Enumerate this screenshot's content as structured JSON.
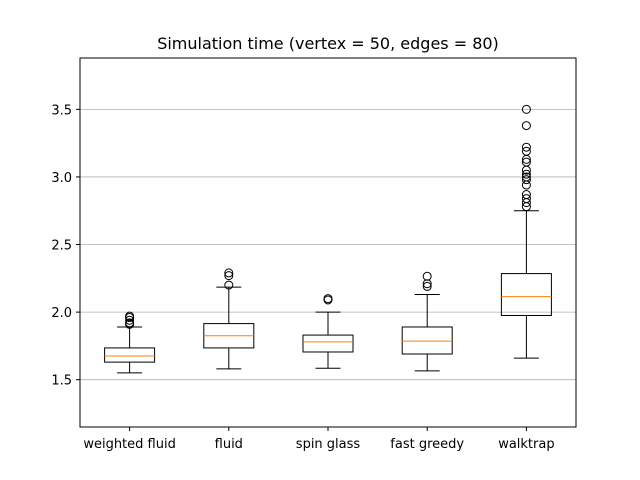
{
  "chart_data": {
    "type": "box",
    "title": "Simulation time (vertex = 50, edges = 80)",
    "xlabel": "",
    "ylabel": "",
    "ylim": [
      1.15,
      3.88
    ],
    "yticks": [
      "1.5",
      "2.0",
      "2.5",
      "3.0",
      "3.5"
    ],
    "grid": "y",
    "categories": [
      "weighted fluid",
      "fluid",
      "spin glass",
      "fast greedy",
      "walktrap"
    ],
    "boxes": [
      {
        "whisker_low": 1.55,
        "q1": 1.63,
        "median": 1.675,
        "q3": 1.735,
        "whisker_high": 1.89,
        "outliers": [
          1.91,
          1.92,
          1.94,
          1.96,
          1.97
        ]
      },
      {
        "whisker_low": 1.58,
        "q1": 1.735,
        "median": 1.825,
        "q3": 1.915,
        "whisker_high": 2.185,
        "outliers": [
          2.2,
          2.27,
          2.29
        ]
      },
      {
        "whisker_low": 1.585,
        "q1": 1.705,
        "median": 1.78,
        "q3": 1.83,
        "whisker_high": 2.0,
        "outliers": [
          2.09,
          2.1
        ]
      },
      {
        "whisker_low": 1.565,
        "q1": 1.69,
        "median": 1.785,
        "q3": 1.89,
        "whisker_high": 2.13,
        "outliers": [
          2.19,
          2.21,
          2.265
        ]
      },
      {
        "whisker_low": 1.66,
        "q1": 1.975,
        "median": 2.115,
        "q3": 2.285,
        "whisker_high": 2.75,
        "outliers": [
          2.78,
          2.81,
          2.84,
          2.87,
          2.94,
          2.98,
          3.0,
          3.02,
          3.05,
          3.11,
          3.13,
          3.19,
          3.22,
          3.38,
          3.5
        ]
      }
    ],
    "colors": {
      "box": "#000000",
      "median": "#ff7f0e",
      "grid": "#b0b0b0"
    }
  }
}
